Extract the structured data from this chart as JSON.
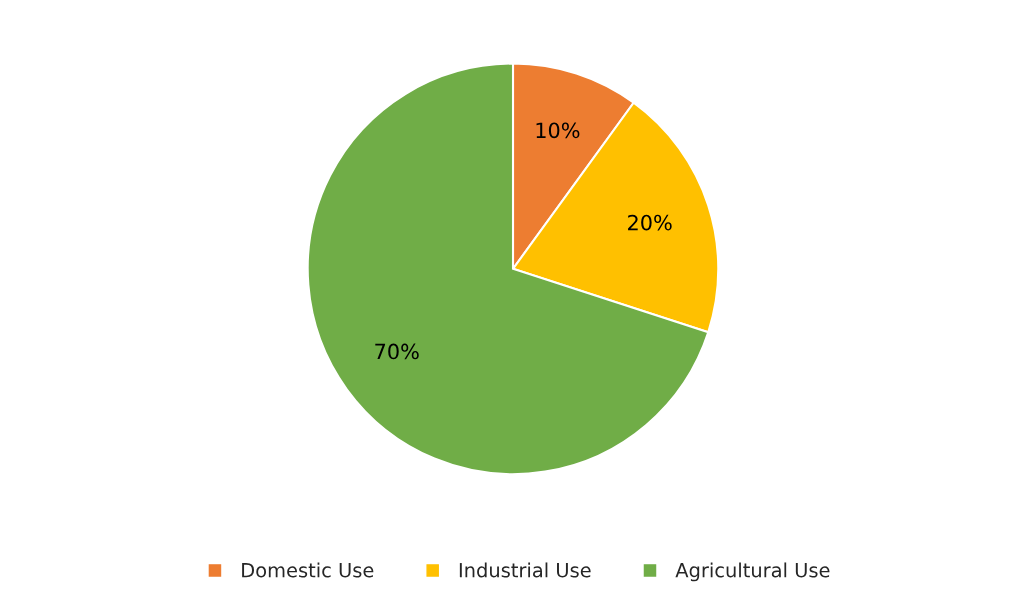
{
  "chart_data": {
    "type": "pie",
    "categories": [
      "Domestic Use",
      "Industrial Use",
      "Agricultural Use"
    ],
    "values": [
      10,
      20,
      70
    ],
    "colors": [
      "#ed7d31",
      "#ffc000",
      "#70ad47"
    ],
    "value_labels": [
      "10%",
      "20%",
      "70%"
    ],
    "legend": "bottom"
  }
}
